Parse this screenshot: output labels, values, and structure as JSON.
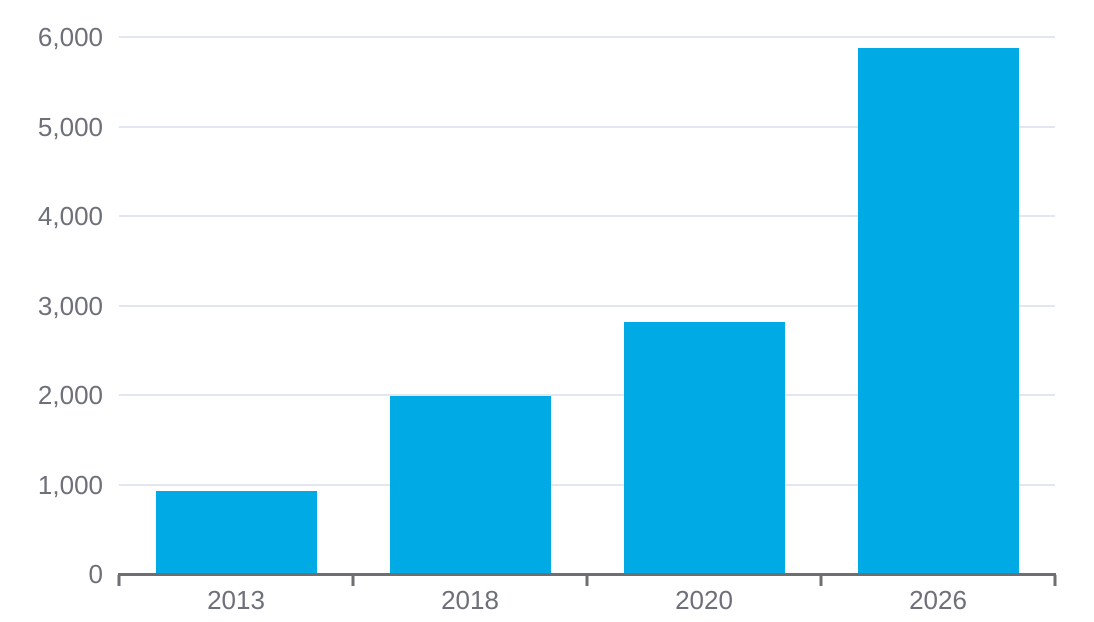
{
  "chart_data": {
    "type": "bar",
    "categories": [
      "2013",
      "2018",
      "2020",
      "2026"
    ],
    "values": [
      930,
      1990,
      2820,
      5880
    ],
    "title": "",
    "xlabel": "",
    "ylabel": "",
    "ylim": [
      0,
      6000
    ],
    "ytick_step": 1000,
    "ytick_labels": [
      "0",
      "1,000",
      "2,000",
      "3,000",
      "4,000",
      "5,000",
      "6,000"
    ],
    "grid": true,
    "legend": "none",
    "colors": {
      "bar": "#00aae4",
      "gridline": "#e2e6f0",
      "axis_line": "#6d6f72",
      "tick_label": "#6e7079",
      "background": "#ffffff"
    }
  }
}
